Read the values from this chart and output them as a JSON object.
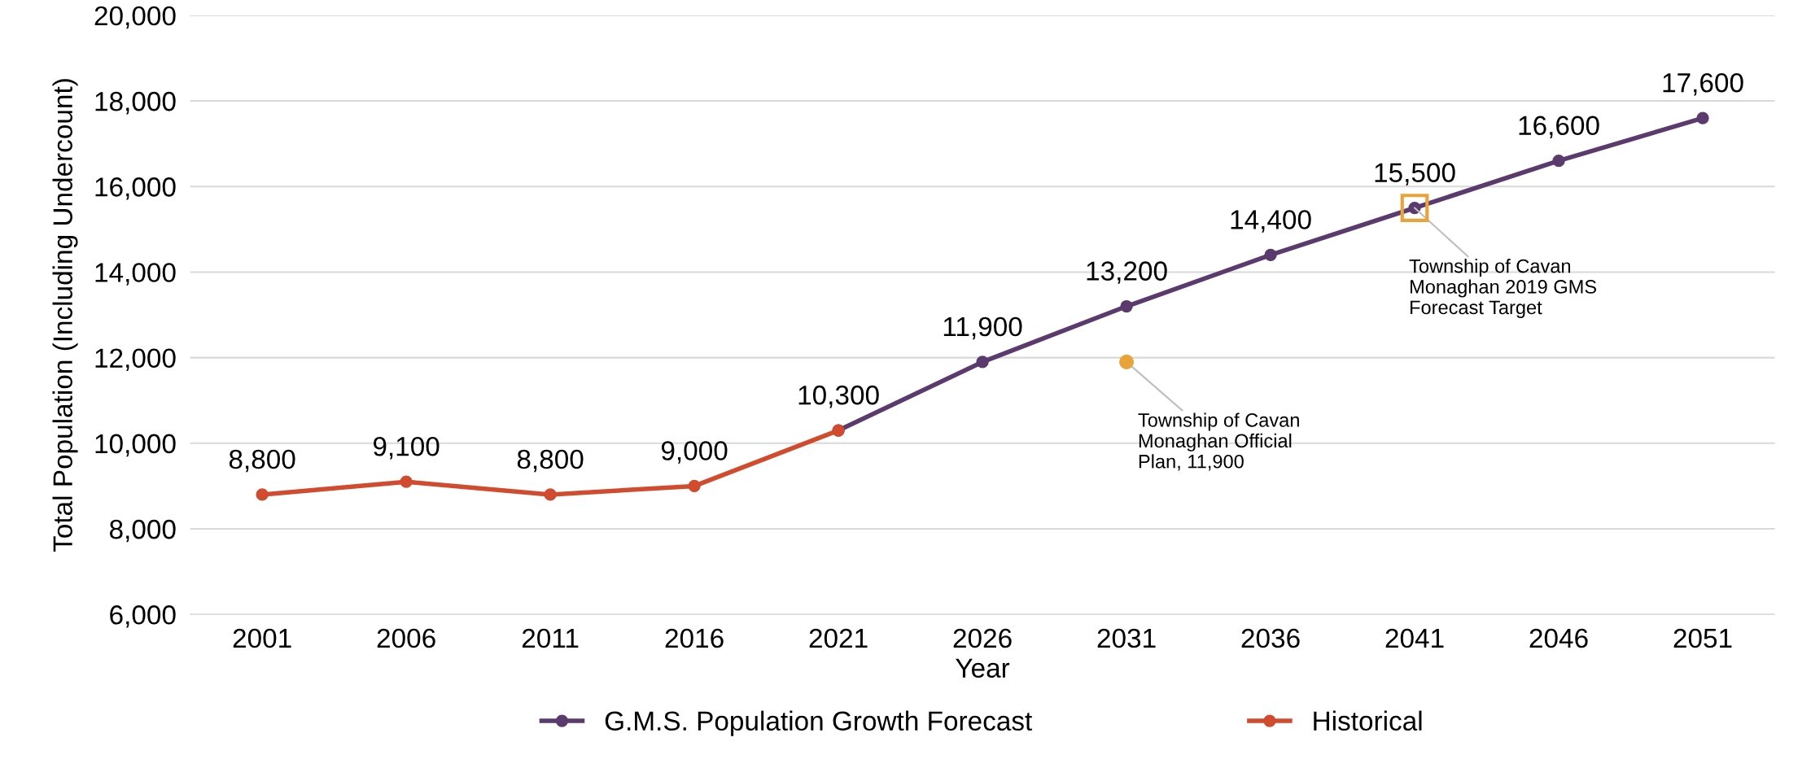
{
  "chart_data": {
    "type": "line",
    "xlabel": "Year",
    "ylabel": "Total Population (Including Undercount)",
    "categories": [
      "2001",
      "2006",
      "2011",
      "2016",
      "2021",
      "2026",
      "2031",
      "2036",
      "2041",
      "2046",
      "2051"
    ],
    "series": [
      {
        "name": "G.M.S. Population Growth Forecast",
        "color": "#5b3a6e",
        "marker": "circle",
        "values": [
          null,
          null,
          null,
          null,
          10300,
          11900,
          13200,
          14400,
          15500,
          16600,
          17600
        ],
        "value_labels": [
          null,
          null,
          null,
          null,
          null,
          "11,900",
          "13,200",
          "14,400",
          "15,500",
          "16,600",
          "17,600"
        ]
      },
      {
        "name": "Historical",
        "color": "#d14b2f",
        "marker": "circle",
        "values": [
          8800,
          9100,
          8800,
          9000,
          10300,
          null,
          null,
          null,
          null,
          null,
          null
        ],
        "value_labels": [
          "8,800",
          "9,100",
          "8,800",
          "9,000",
          "10,300",
          null,
          null,
          null,
          null,
          null,
          null
        ]
      },
      {
        "type": "scatter",
        "color": "#e8a33a",
        "marker": "circle",
        "values": [
          null,
          null,
          null,
          null,
          null,
          null,
          11900,
          null,
          null,
          null,
          null
        ]
      },
      {
        "type": "scatter",
        "color": "#e8a33a",
        "marker": "square",
        "values": [
          null,
          null,
          null,
          null,
          null,
          null,
          null,
          null,
          15500,
          null,
          null
        ]
      }
    ],
    "annotations": [
      {
        "text": "Township of Cavan\nMonaghan Official\nPlan, 11,900",
        "x": "2031",
        "y": 11900
      },
      {
        "text": "Township of Cavan\nMonaghan 2019 GMS\nForecast Target",
        "x": "2041",
        "y": 15500
      }
    ],
    "ylim": [
      6000,
      20000
    ],
    "yticks": [
      {
        "value": 6000,
        "label": "6,000"
      },
      {
        "value": 8000,
        "label": "8,000"
      },
      {
        "value": 10000,
        "label": "10,000"
      },
      {
        "value": 12000,
        "label": "12,000"
      },
      {
        "value": 14000,
        "label": "14,000"
      },
      {
        "value": 16000,
        "label": "16,000"
      },
      {
        "value": 18000,
        "label": "18,000"
      },
      {
        "value": 20000,
        "label": "20,000"
      }
    ],
    "grid": "y",
    "legend": "bottom"
  }
}
